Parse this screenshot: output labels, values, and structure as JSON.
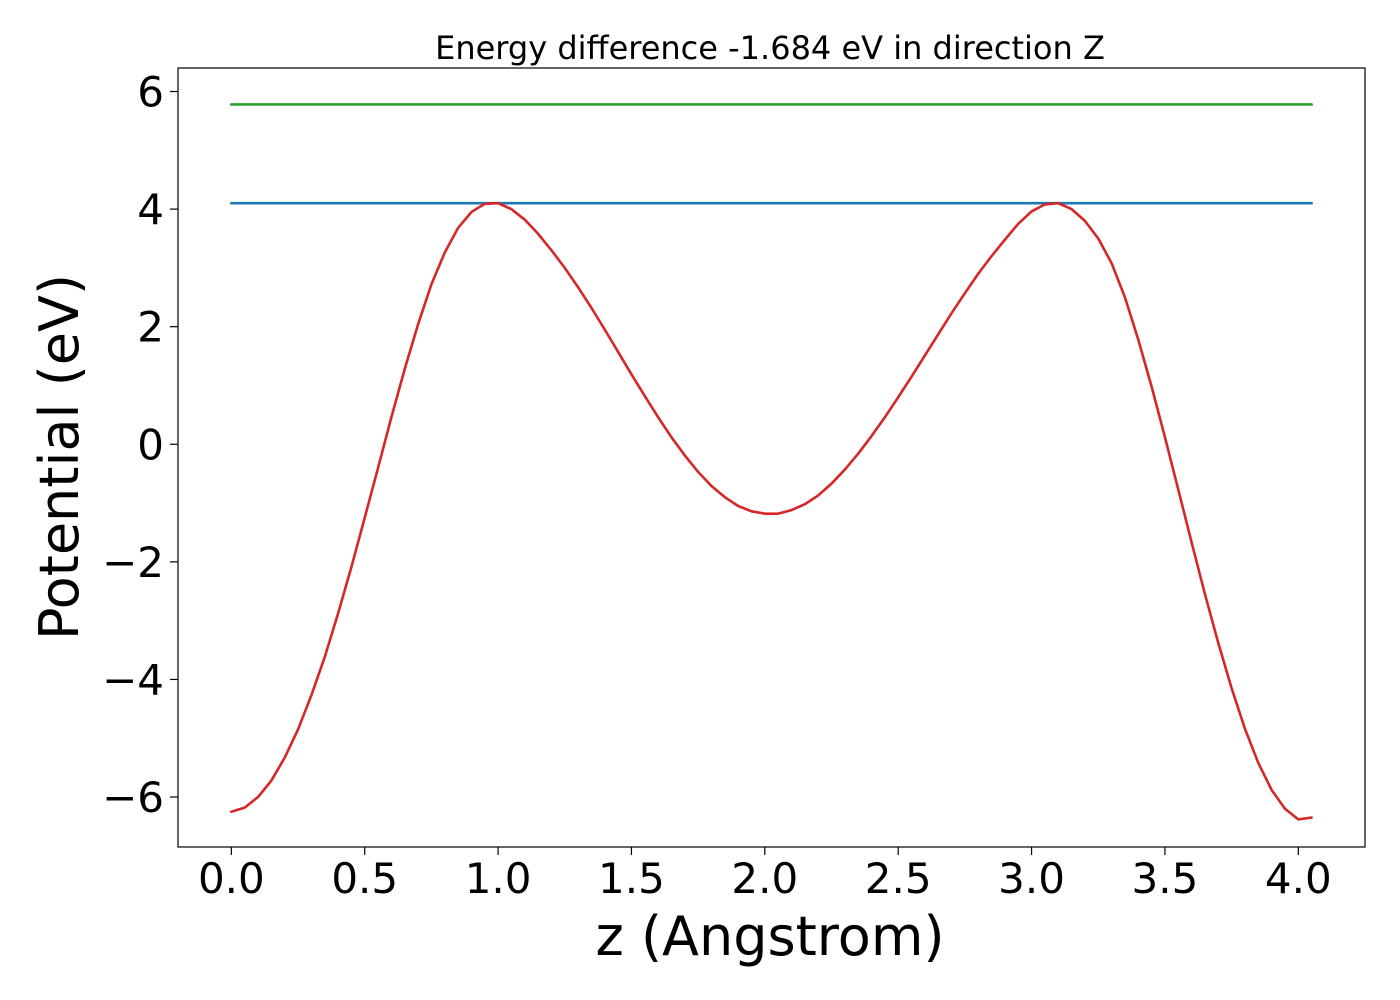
{
  "chart_data": {
    "type": "line",
    "title": "Energy difference -1.684 eV in direction Z",
    "xlabel": "z (Angstrom)",
    "ylabel": "Potential (eV)",
    "xlim": [
      -0.2,
      4.25
    ],
    "ylim": [
      -6.85,
      6.4
    ],
    "xticks": [
      0.0,
      0.5,
      1.0,
      1.5,
      2.0,
      2.5,
      3.0,
      3.5,
      4.0
    ],
    "xtick_labels": [
      "0.0",
      "0.5",
      "1.0",
      "1.5",
      "2.0",
      "2.5",
      "3.0",
      "3.5",
      "4.0"
    ],
    "yticks": [
      -6,
      -4,
      -2,
      0,
      2,
      4,
      6
    ],
    "ytick_labels": [
      "−6",
      "−4",
      "−2",
      "0",
      "2",
      "4",
      "6"
    ],
    "grid": false,
    "series": [
      {
        "color": "#2ca02c",
        "x": [
          0.0,
          4.05
        ],
        "values": [
          5.78,
          5.78
        ]
      },
      {
        "color": "#1f77b4",
        "x": [
          0.0,
          4.05
        ],
        "values": [
          4.1,
          4.1
        ]
      },
      {
        "color": "#d62728",
        "x": [
          0.0,
          0.05,
          0.1,
          0.15,
          0.2,
          0.25,
          0.3,
          0.35,
          0.4,
          0.45,
          0.5,
          0.55,
          0.6,
          0.65,
          0.7,
          0.75,
          0.8,
          0.85,
          0.9,
          0.95,
          1.0,
          1.05,
          1.1,
          1.15,
          1.2,
          1.25,
          1.3,
          1.35,
          1.4,
          1.45,
          1.5,
          1.55,
          1.6,
          1.65,
          1.7,
          1.75,
          1.8,
          1.85,
          1.9,
          1.95,
          2.0,
          2.05,
          2.1,
          2.15,
          2.2,
          2.25,
          2.3,
          2.35,
          2.4,
          2.45,
          2.5,
          2.55,
          2.6,
          2.65,
          2.7,
          2.75,
          2.8,
          2.85,
          2.9,
          2.95,
          3.0,
          3.05,
          3.1,
          3.15,
          3.2,
          3.25,
          3.3,
          3.35,
          3.4,
          3.45,
          3.5,
          3.55,
          3.6,
          3.65,
          3.7,
          3.75,
          3.8,
          3.85,
          3.9,
          3.95,
          4.0,
          4.05
        ],
        "values": [
          -6.25,
          -6.18,
          -6.0,
          -5.72,
          -5.33,
          -4.85,
          -4.27,
          -3.62,
          -2.88,
          -2.09,
          -1.25,
          -0.4,
          0.46,
          1.28,
          2.04,
          2.72,
          3.26,
          3.68,
          3.95,
          4.09,
          4.1,
          4.0,
          3.82,
          3.58,
          3.3,
          3.0,
          2.67,
          2.32,
          1.95,
          1.57,
          1.19,
          0.82,
          0.46,
          0.12,
          -0.19,
          -0.47,
          -0.71,
          -0.9,
          -1.05,
          -1.14,
          -1.18,
          -1.18,
          -1.12,
          -1.02,
          -0.87,
          -0.67,
          -0.43,
          -0.16,
          0.14,
          0.46,
          0.8,
          1.15,
          1.51,
          1.87,
          2.23,
          2.57,
          2.9,
          3.2,
          3.48,
          3.75,
          3.96,
          4.08,
          4.1,
          4.0,
          3.8,
          3.5,
          3.08,
          2.5,
          1.78,
          0.98,
          0.12,
          -0.77,
          -1.67,
          -2.55,
          -3.38,
          -4.15,
          -4.84,
          -5.42,
          -5.88,
          -6.2,
          -6.38,
          -6.35
        ]
      }
    ]
  }
}
